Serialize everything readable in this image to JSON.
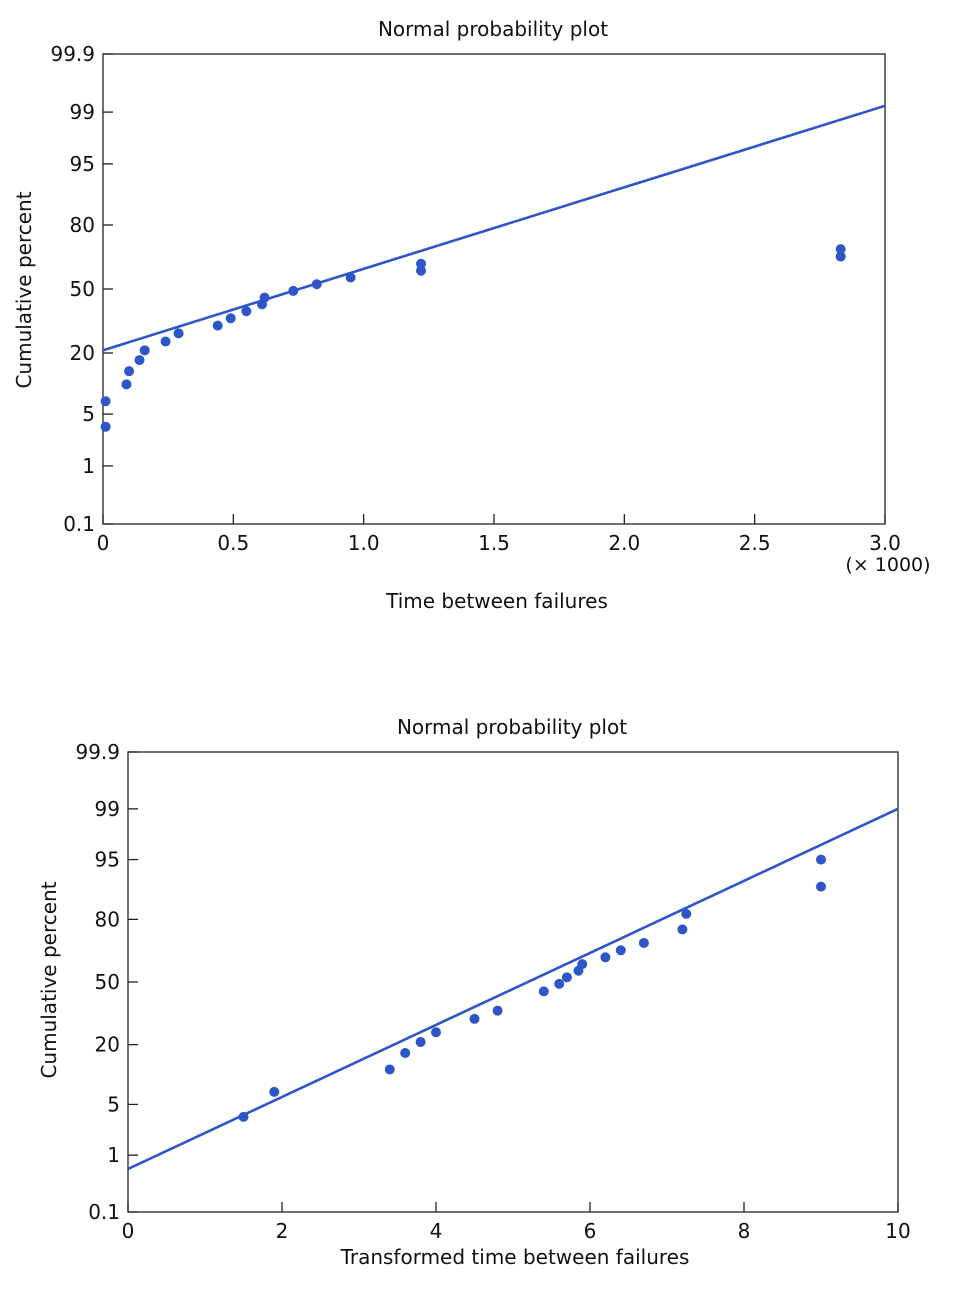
{
  "chart_data": [
    {
      "type": "scatter",
      "title": "Normal probability plot",
      "xlabel": "Time between failures",
      "ylabel": "Cumulative percent",
      "x_multiplier_label": "(× 1000)",
      "xlim": [
        0,
        3.0
      ],
      "x_ticks": [
        "0",
        "0.5",
        "1.0",
        "1.5",
        "2.0",
        "2.5",
        "3.0"
      ],
      "y_scale": "normal-probability",
      "y_ticks": [
        "0.1",
        "1",
        "5",
        "20",
        "50",
        "80",
        "95",
        "99",
        "99.9"
      ],
      "series": [
        {
          "points": [
            {
              "x": 0.01,
              "y": 3.5
            },
            {
              "x": 0.01,
              "y": 7.0
            },
            {
              "x": 0.09,
              "y": 10.5
            },
            {
              "x": 0.1,
              "y": 14.0
            },
            {
              "x": 0.14,
              "y": 17.5
            },
            {
              "x": 0.16,
              "y": 21.0
            },
            {
              "x": 0.24,
              "y": 24.5
            },
            {
              "x": 0.29,
              "y": 28.0
            },
            {
              "x": 0.44,
              "y": 31.5
            },
            {
              "x": 0.49,
              "y": 35.0
            },
            {
              "x": 0.55,
              "y": 38.5
            },
            {
              "x": 0.61,
              "y": 42.0
            },
            {
              "x": 0.62,
              "y": 45.5
            },
            {
              "x": 0.73,
              "y": 49.0
            },
            {
              "x": 0.82,
              "y": 52.5
            },
            {
              "x": 0.95,
              "y": 56.0
            },
            {
              "x": 1.22,
              "y": 59.5
            },
            {
              "x": 1.22,
              "y": 63.0
            },
            {
              "x": 2.83,
              "y": 66.5
            },
            {
              "x": 2.83,
              "y": 70.0
            }
          ]
        }
      ],
      "fit_line": {
        "x": [
          0,
          3.0
        ],
        "y": [
          21,
          99.2
        ]
      }
    },
    {
      "type": "scatter",
      "title": "Normal probability plot",
      "xlabel": "Transformed time between failures",
      "ylabel": "Cumulative percent",
      "xlim": [
        0,
        10
      ],
      "x_ticks": [
        "0",
        "2",
        "4",
        "6",
        "8",
        "10"
      ],
      "y_scale": "normal-probability",
      "y_ticks": [
        "0.1",
        "1",
        "5",
        "20",
        "50",
        "80",
        "95",
        "99",
        "99.9"
      ],
      "series": [
        {
          "points": [
            {
              "x": 1.5,
              "y": 3.5
            },
            {
              "x": 1.9,
              "y": 7.0
            },
            {
              "x": 3.4,
              "y": 12.0
            },
            {
              "x": 3.6,
              "y": 17.0
            },
            {
              "x": 3.8,
              "y": 21.0
            },
            {
              "x": 4.0,
              "y": 25.0
            },
            {
              "x": 4.5,
              "y": 31.0
            },
            {
              "x": 4.8,
              "y": 35.0
            },
            {
              "x": 5.4,
              "y": 45.0
            },
            {
              "x": 5.6,
              "y": 49.0
            },
            {
              "x": 5.7,
              "y": 52.5
            },
            {
              "x": 5.85,
              "y": 56.0
            },
            {
              "x": 5.9,
              "y": 59.5
            },
            {
              "x": 6.2,
              "y": 63.0
            },
            {
              "x": 6.4,
              "y": 66.5
            },
            {
              "x": 6.7,
              "y": 70.0
            },
            {
              "x": 7.2,
              "y": 76.0
            },
            {
              "x": 7.25,
              "y": 82.0
            },
            {
              "x": 9.0,
              "y": 90.0
            },
            {
              "x": 9.0,
              "y": 95.0
            }
          ]
        }
      ],
      "fit_line": {
        "x": [
          0,
          10
        ],
        "y": [
          0.6,
          99.0
        ]
      }
    }
  ]
}
